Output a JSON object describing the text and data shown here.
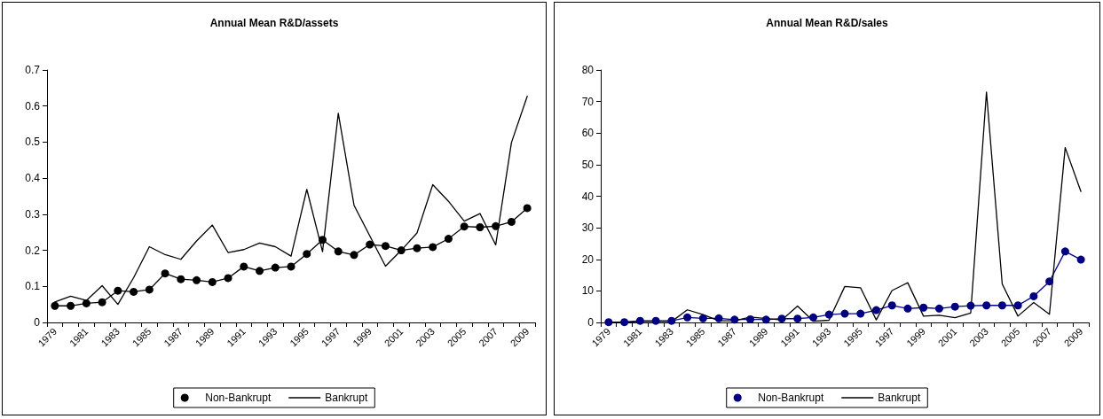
{
  "chart_data": [
    {
      "type": "line",
      "title": "Annual Mean R&D/assets",
      "categories": [
        "1979",
        null,
        "1981",
        null,
        "1983",
        null,
        "1985",
        null,
        "1987",
        null,
        "1989",
        null,
        "1991",
        null,
        "1993",
        null,
        "1995",
        null,
        "1997",
        null,
        "1999",
        null,
        "2001",
        null,
        "2003",
        null,
        "2005",
        null,
        "2007",
        null,
        "2009"
      ],
      "series": [
        {
          "name": "Non-Bankrupt",
          "color": "#000000",
          "marker": "circle",
          "values": [
            0.046,
            0.046,
            0.053,
            0.056,
            0.088,
            0.085,
            0.091,
            0.136,
            0.12,
            0.117,
            0.112,
            0.123,
            0.155,
            0.143,
            0.152,
            0.155,
            0.19,
            0.229,
            0.197,
            0.187,
            0.216,
            0.212,
            0.2,
            0.206,
            0.209,
            0.232,
            0.266,
            0.264,
            0.267,
            0.279,
            0.317
          ]
        },
        {
          "name": "Bankrupt",
          "color": "#000000",
          "marker": "none",
          "values": [
            0.057,
            0.073,
            0.061,
            0.102,
            0.05,
            0.124,
            0.21,
            0.188,
            0.175,
            0.226,
            0.27,
            0.194,
            0.202,
            0.22,
            0.21,
            0.184,
            0.369,
            0.196,
            0.58,
            0.325,
            0.24,
            0.156,
            0.2,
            0.248,
            0.382,
            0.336,
            0.281,
            0.302,
            0.215,
            0.499,
            0.627
          ]
        }
      ],
      "ylim": [
        0,
        0.7
      ],
      "yticks": [
        0,
        0.1,
        0.2,
        0.3,
        0.4,
        0.5,
        0.6,
        0.7
      ],
      "grid": false,
      "legend": "bottom",
      "line_style": "solid"
    },
    {
      "type": "line",
      "title": "Annual Mean R&D/sales",
      "categories": [
        "1979",
        null,
        "1981",
        null,
        "1983",
        null,
        "1985",
        null,
        "1987",
        null,
        "1989",
        null,
        "1991",
        null,
        "1993",
        null,
        "1995",
        null,
        "1997",
        null,
        "1999",
        null,
        "2001",
        null,
        "2003",
        null,
        "2005",
        null,
        "2007",
        null,
        "2009"
      ],
      "series": [
        {
          "name": "Non-Bankrupt",
          "color": "#000080",
          "marker": "circle",
          "values": [
            0.1,
            0.1,
            0.5,
            0.5,
            0.5,
            1.6,
            1.3,
            1.3,
            0.9,
            1.0,
            0.9,
            1.2,
            1.2,
            1.6,
            2.5,
            2.8,
            2.8,
            3.9,
            5.4,
            4.4,
            4.7,
            4.4,
            5.0,
            5.3,
            5.4,
            5.4,
            5.4,
            8.3,
            13.0,
            22.5,
            19.9
          ]
        },
        {
          "name": "Bankrupt",
          "color": "#000000",
          "marker": "none",
          "values": [
            0.1,
            0.1,
            0.3,
            0.3,
            0.3,
            4.0,
            2.5,
            0.5,
            0.5,
            1.7,
            1.2,
            0.8,
            5.2,
            0.4,
            0.7,
            11.4,
            11.0,
            0.8,
            10.1,
            12.6,
            2.0,
            2.3,
            1.5,
            3.0,
            73,
            12.2,
            2.0,
            6.3,
            2.6,
            55.4,
            41.5
          ]
        }
      ],
      "ylim": [
        0,
        80
      ],
      "yticks": [
        0,
        10,
        20,
        30,
        40,
        50,
        60,
        70,
        80
      ],
      "grid": false,
      "legend": "bottom",
      "line_style": "solid"
    }
  ]
}
